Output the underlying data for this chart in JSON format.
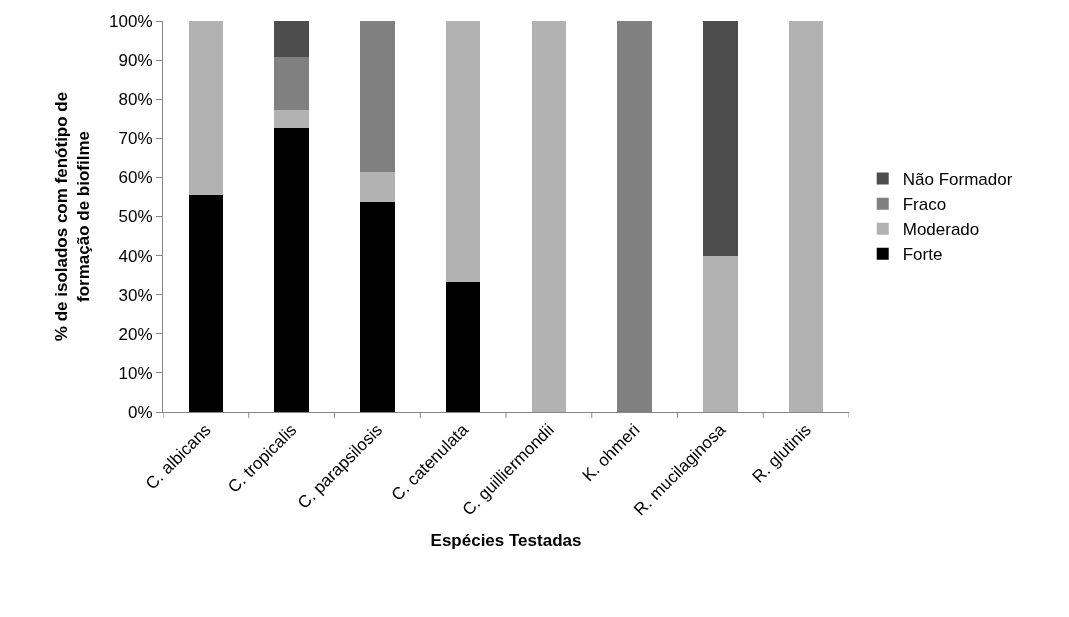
{
  "chart_data": {
    "type": "bar",
    "stacked": true,
    "xlabel": "Espécies Testadas",
    "ylabel": "% de isolados com fenótipo de formação de biofilme",
    "categories": [
      "C. albicans",
      "C. tropicalis",
      "C. parapsilosis",
      "C. catenulata",
      "C. guilliermondii",
      "K. ohmeri",
      "R. mucilaginosa",
      "R. glutinis"
    ],
    "series": [
      {
        "name": "Forte",
        "color": "#000000",
        "values": [
          55.6,
          72.7,
          53.8,
          33.3,
          0,
          0,
          0,
          0
        ]
      },
      {
        "name": "Moderado",
        "color": "#b2b2b2",
        "values": [
          44.4,
          4.5,
          7.7,
          66.7,
          100,
          0,
          40,
          100
        ]
      },
      {
        "name": "Fraco",
        "color": "#808080",
        "values": [
          0,
          13.6,
          38.5,
          0,
          0,
          100,
          0,
          0
        ]
      },
      {
        "name": "Não Formador",
        "color": "#4d4d4d",
        "values": [
          0,
          9.1,
          0,
          0,
          0,
          0,
          60,
          0
        ]
      }
    ],
    "ylim": [
      0,
      100
    ],
    "yticks": [
      {
        "value": 0,
        "label": "0%"
      },
      {
        "value": 10,
        "label": "10%"
      },
      {
        "value": 20,
        "label": "20%"
      },
      {
        "value": 30,
        "label": "30%"
      },
      {
        "value": 40,
        "label": "40%"
      },
      {
        "value": 50,
        "label": "50%"
      },
      {
        "value": 60,
        "label": "60%"
      },
      {
        "value": 70,
        "label": "70%"
      },
      {
        "value": 80,
        "label": "80%"
      },
      {
        "value": 90,
        "label": "90%"
      },
      {
        "value": 100,
        "label": "100%"
      }
    ],
    "legend": "right"
  }
}
